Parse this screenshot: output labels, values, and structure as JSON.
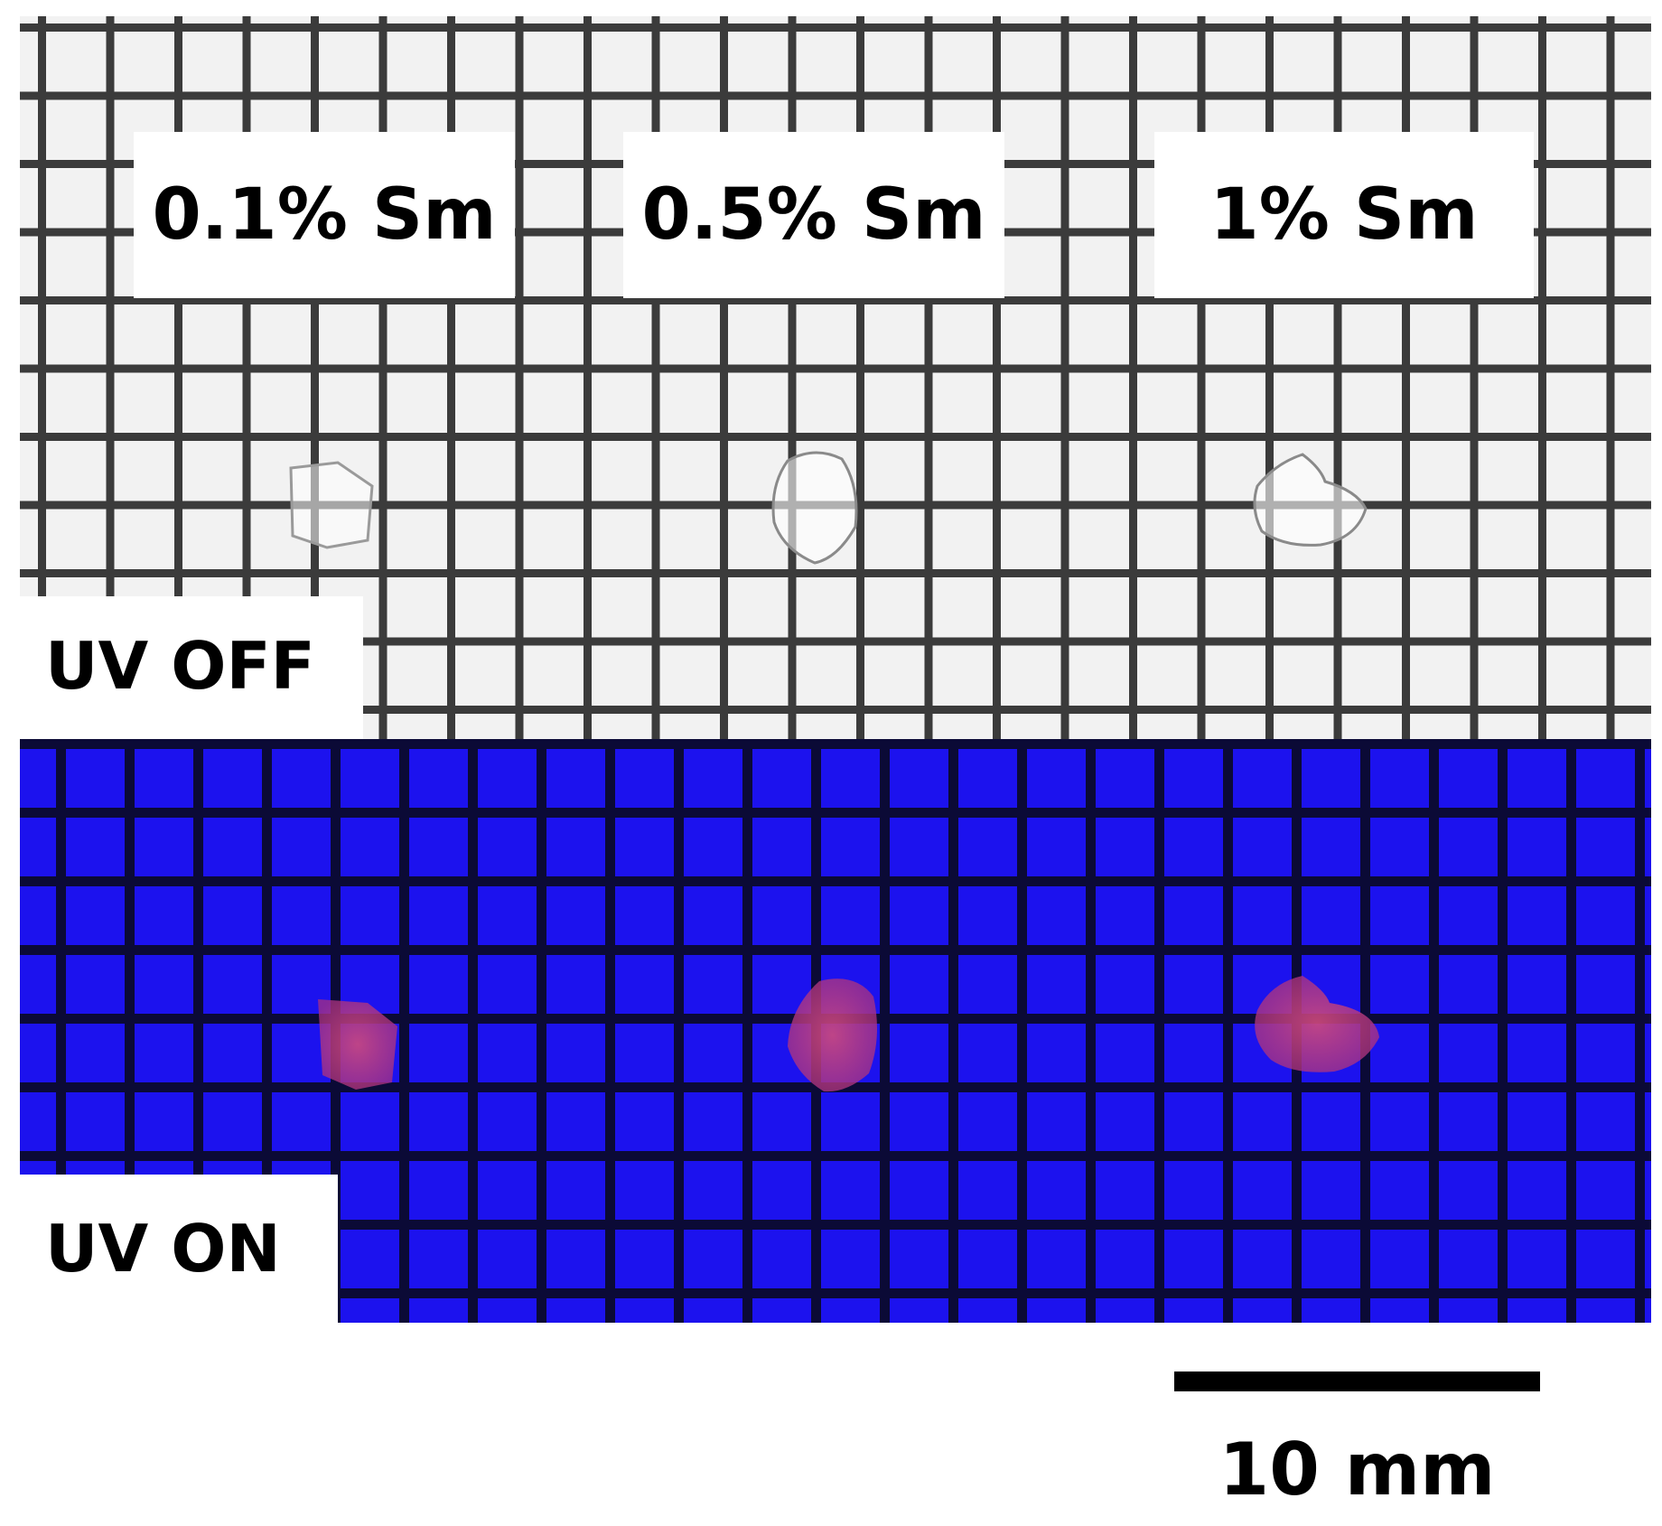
{
  "samples": [
    {
      "label": "0.1% Sm"
    },
    {
      "label": "0.5% Sm"
    },
    {
      "label": "1% Sm"
    }
  ],
  "uv_off_label": "UV OFF",
  "uv_on_label": "UV ON",
  "scale_bar_label": "10 mm",
  "colors": {
    "paper": "#f2f2f2",
    "grid_off": "#3b3b3b",
    "uv_background": "#1c12ee",
    "grid_on": "#0b0a36",
    "crystal_glow": "#c8407a"
  }
}
